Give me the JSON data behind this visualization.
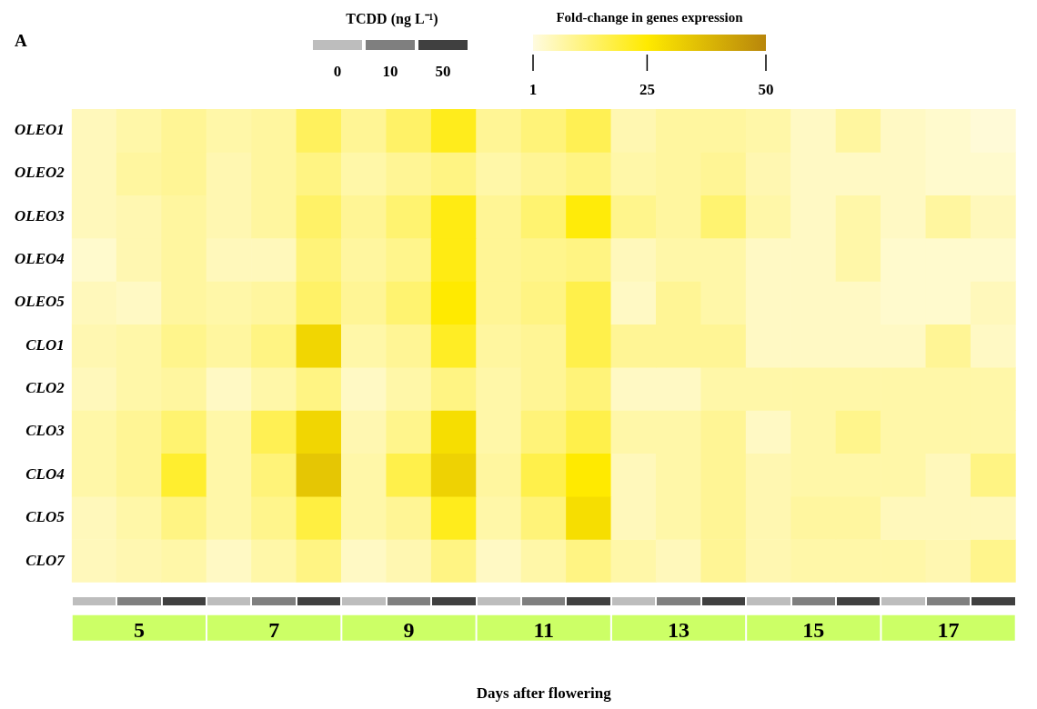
{
  "chart_data": {
    "type": "heatmap",
    "xlabel": "Days after flowering",
    "clabel": "Fold-change in genes expression",
    "legend_title": "TCDD (ng L⁻¹)",
    "annotations": [
      "A",
      "0",
      "10",
      "50"
    ],
    "categories": [
      null,
      "5",
      null,
      null,
      "7",
      null,
      null,
      "9",
      null,
      null,
      "11",
      null,
      null,
      "13",
      null,
      null,
      "15",
      null,
      null,
      "17",
      null
    ],
    "y_categories": [
      "OLEO1",
      "OLEO2",
      "OLEO3",
      "OLEO4",
      "OLEO5",
      "CLO1",
      "CLO2",
      "CLO3",
      "CLO4",
      "CLO5",
      "CLO7"
    ],
    "cells": [
      [
        5,
        7,
        9,
        7,
        8,
        15,
        9,
        14,
        22,
        9,
        12,
        16,
        6,
        8,
        8,
        7,
        4,
        8,
        4,
        3,
        2
      ],
      [
        5,
        8,
        9,
        6,
        8,
        11,
        7,
        9,
        11,
        7,
        9,
        11,
        7,
        8,
        9,
        6,
        4,
        4,
        4,
        3,
        3
      ],
      [
        5,
        6,
        8,
        6,
        8,
        14,
        9,
        13,
        23,
        9,
        13,
        24,
        10,
        8,
        13,
        7,
        4,
        7,
        4,
        8,
        5
      ],
      [
        3,
        6,
        8,
        5,
        5,
        12,
        8,
        10,
        23,
        9,
        10,
        11,
        5,
        7,
        7,
        4,
        4,
        7,
        3,
        3,
        3
      ],
      [
        5,
        4,
        8,
        7,
        8,
        14,
        9,
        13,
        25,
        9,
        11,
        17,
        4,
        9,
        7,
        4,
        4,
        4,
        3,
        3,
        5
      ],
      [
        6,
        7,
        10,
        8,
        11,
        30,
        7,
        9,
        21,
        8,
        9,
        17,
        9,
        9,
        9,
        4,
        4,
        4,
        4,
        9,
        4
      ],
      [
        5,
        7,
        8,
        4,
        7,
        11,
        4,
        7,
        11,
        7,
        9,
        12,
        4,
        4,
        7,
        7,
        7,
        7,
        7,
        7,
        7
      ],
      [
        7,
        9,
        13,
        7,
        16,
        30,
        6,
        10,
        28,
        7,
        12,
        17,
        7,
        7,
        9,
        4,
        7,
        10,
        7,
        7,
        7
      ],
      [
        7,
        9,
        20,
        7,
        12,
        34,
        7,
        17,
        31,
        8,
        17,
        25,
        5,
        7,
        9,
        6,
        7,
        7,
        7,
        5,
        11
      ],
      [
        5,
        7,
        11,
        7,
        10,
        18,
        7,
        9,
        22,
        7,
        12,
        28,
        5,
        7,
        9,
        6,
        8,
        8,
        5,
        5,
        5
      ],
      [
        5,
        6,
        7,
        4,
        7,
        11,
        4,
        6,
        11,
        4,
        7,
        11,
        7,
        5,
        9,
        6,
        7,
        7,
        7,
        6,
        10
      ]
    ],
    "clim": [
      1,
      50
    ],
    "cticks": [
      1,
      25,
      50
    ],
    "colors": [
      "#fffbe0",
      "#ffea00",
      "#b8860b"
    ]
  }
}
